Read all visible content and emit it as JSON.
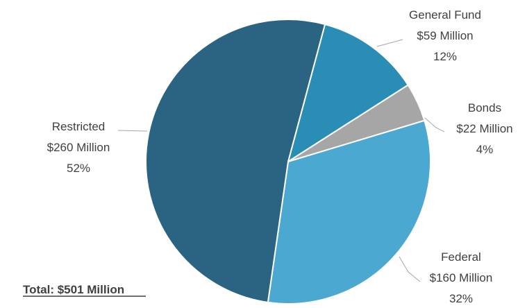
{
  "chart_data": {
    "type": "pie",
    "slices": [
      {
        "name": "General Fund",
        "amount": "$59 Million",
        "percent": "12%",
        "value": 59,
        "color": "#2a8db6"
      },
      {
        "name": "Bonds",
        "amount": "$22 Million",
        "percent": "4%",
        "value": 22,
        "color": "#a6a6a6"
      },
      {
        "name": "Federal",
        "amount": "$160 Million",
        "percent": "32%",
        "value": 160,
        "color": "#4ba8d0"
      },
      {
        "name": "Restricted",
        "amount": "$260 Million",
        "percent": "52%",
        "value": 260,
        "color": "#2b6383"
      }
    ],
    "total_label": "Total: $501 Million"
  }
}
